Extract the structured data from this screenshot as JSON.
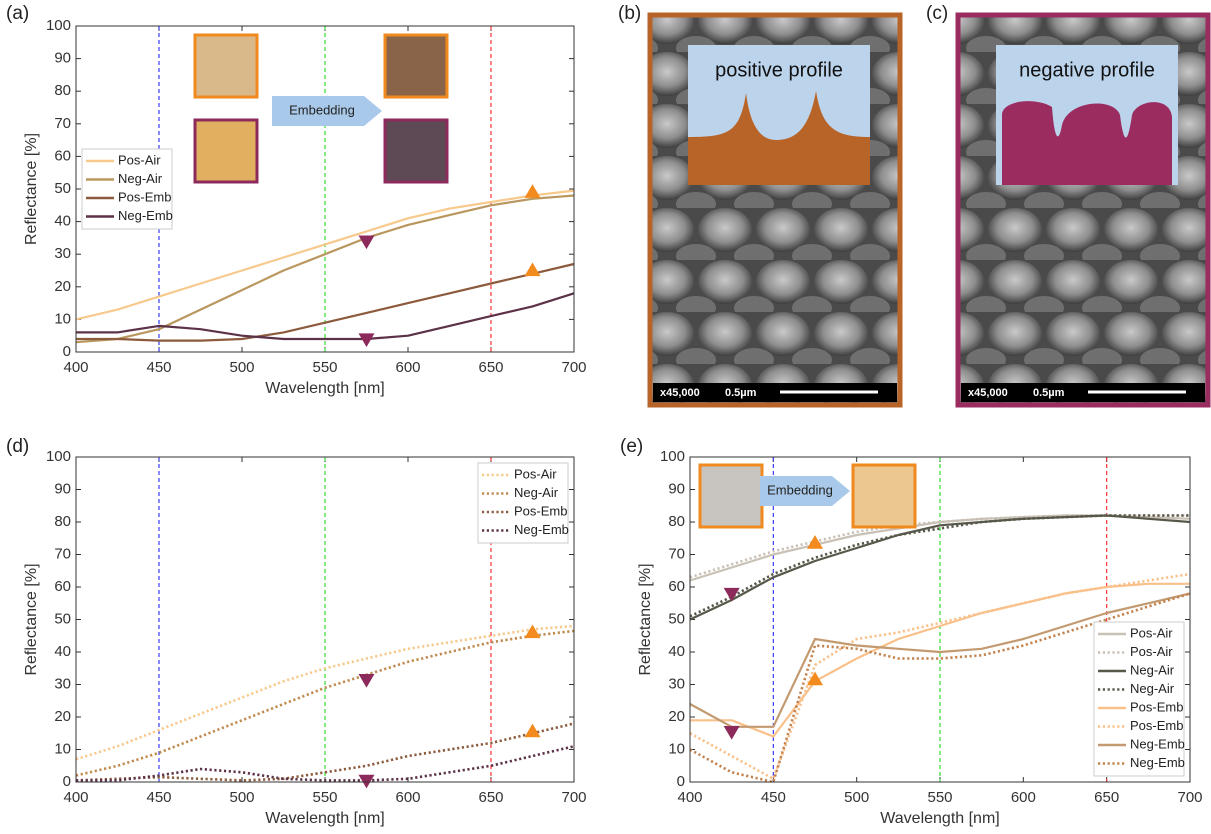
{
  "chart_data": [
    {
      "type": "line",
      "label": "(a)",
      "xlabel": "Wavelength [nm]",
      "ylabel": "Reflectance [%]",
      "x": [
        400,
        425,
        450,
        475,
        500,
        525,
        550,
        575,
        600,
        625,
        650,
        675,
        700
      ],
      "series": [
        {
          "name": "Pos-Air",
          "color": "#f7c98c",
          "linestyle": "solid",
          "values": [
            10,
            13,
            17,
            21,
            25,
            29,
            33,
            37,
            41,
            44,
            46,
            48,
            49.5
          ]
        },
        {
          "name": "Neg-Air",
          "color": "#b9975e",
          "linestyle": "solid",
          "values": [
            3,
            4,
            7,
            13,
            19,
            25,
            30,
            35,
            39,
            42,
            45,
            47,
            48
          ]
        },
        {
          "name": "Pos-Emb",
          "color": "#8c5a3c",
          "linestyle": "solid",
          "values": [
            4,
            4,
            3.5,
            3.5,
            4,
            6,
            9,
            12,
            15,
            18,
            21,
            24,
            27
          ]
        },
        {
          "name": "Neg-Emb",
          "color": "#5c3248",
          "linestyle": "solid",
          "values": [
            6,
            6,
            8,
            7,
            5,
            4,
            4,
            4,
            5,
            8,
            11,
            14,
            18
          ]
        }
      ],
      "xlim": [
        400,
        700
      ],
      "ylim": [
        0,
        100
      ],
      "xticks": [
        400,
        450,
        500,
        550,
        600,
        650,
        700
      ],
      "yticks": [
        0,
        10,
        20,
        30,
        40,
        50,
        60,
        70,
        80,
        90,
        100
      ],
      "legend": "center left",
      "vlines": [
        {
          "x": 450,
          "color": "#3a3aff"
        },
        {
          "x": 550,
          "color": "#33dd33"
        },
        {
          "x": 650,
          "color": "#ff3333"
        }
      ],
      "markers": [
        {
          "x": 675,
          "y": 49,
          "shape": "up",
          "color": "#f28a1e"
        },
        {
          "x": 675,
          "y": 25,
          "shape": "up",
          "color": "#f28a1e"
        },
        {
          "x": 575,
          "y": 34,
          "shape": "down",
          "color": "#8c2a5c"
        },
        {
          "x": 575,
          "y": 4,
          "shape": "down",
          "color": "#8c2a5c"
        }
      ],
      "annotation": "Embedding"
    },
    {
      "type": "image",
      "label": "(b)",
      "inset_text": "positive profile",
      "magnification": "x45,000",
      "scale": "0.5µm",
      "color": "#b86428"
    },
    {
      "type": "image",
      "label": "(c)",
      "inset_text": "negative profile",
      "magnification": "x45,000",
      "scale": "0.5µm",
      "color": "#9a2c60"
    },
    {
      "type": "line",
      "label": "(d)",
      "xlabel": "Wavelength [nm]",
      "ylabel": "Reflectance [%]",
      "x": [
        400,
        425,
        450,
        475,
        500,
        525,
        550,
        575,
        600,
        625,
        650,
        675,
        700
      ],
      "series": [
        {
          "name": "Pos-Air",
          "color": "#f7c98c",
          "linestyle": "dotted",
          "values": [
            7,
            11,
            16,
            21,
            26,
            31,
            35,
            38,
            41,
            43,
            45,
            47,
            48
          ]
        },
        {
          "name": "Neg-Air",
          "color": "#c08a4e",
          "linestyle": "dotted",
          "values": [
            2,
            5,
            9,
            14,
            19,
            24,
            29,
            33,
            37,
            40,
            43,
            45,
            46.5
          ]
        },
        {
          "name": "Pos-Emb",
          "color": "#8c5a3c",
          "linestyle": "dotted",
          "values": [
            0.5,
            1,
            1.5,
            1,
            0.5,
            1,
            3,
            5,
            8,
            10,
            12,
            15,
            18
          ]
        },
        {
          "name": "Neg-Emb",
          "color": "#5c3248",
          "linestyle": "dotted",
          "values": [
            0.5,
            0.5,
            2,
            4,
            3,
            1,
            0.5,
            0.5,
            1,
            3,
            5,
            8,
            11
          ]
        }
      ],
      "xlim": [
        400,
        700
      ],
      "ylim": [
        0,
        100
      ],
      "xticks": [
        400,
        450,
        500,
        550,
        600,
        650,
        700
      ],
      "yticks": [
        0,
        10,
        20,
        30,
        40,
        50,
        60,
        70,
        80,
        90,
        100
      ],
      "legend": "upper right",
      "vlines": [
        {
          "x": 450,
          "color": "#3a3aff"
        },
        {
          "x": 550,
          "color": "#33dd33"
        },
        {
          "x": 650,
          "color": "#ff3333"
        }
      ],
      "markers": [
        {
          "x": 675,
          "y": 46,
          "shape": "up",
          "color": "#f28a1e"
        },
        {
          "x": 675,
          "y": 15.5,
          "shape": "up",
          "color": "#f28a1e"
        },
        {
          "x": 575,
          "y": 31.5,
          "shape": "down",
          "color": "#8c2a5c"
        },
        {
          "x": 575,
          "y": 0.5,
          "shape": "down",
          "color": "#8c2a5c"
        }
      ]
    },
    {
      "type": "line",
      "label": "(e)",
      "xlabel": "Wavelength [nm]",
      "ylabel": "Reflectance [%]",
      "x": [
        400,
        425,
        450,
        475,
        500,
        525,
        550,
        575,
        600,
        625,
        650,
        675,
        700
      ],
      "series": [
        {
          "name": "Pos-Air",
          "color": "#c9c1b6",
          "linestyle": "solid",
          "values": [
            62,
            66,
            70,
            73,
            76,
            78,
            80,
            81,
            81.5,
            82,
            82,
            81.5,
            81
          ]
        },
        {
          "name": "Pos-Air",
          "color": "#c9c1b6",
          "linestyle": "dotted",
          "values": [
            63,
            67,
            71,
            74,
            77,
            79,
            80,
            81,
            81.5,
            82,
            82,
            82,
            82
          ]
        },
        {
          "name": "Neg-Air",
          "color": "#57574a",
          "linestyle": "solid",
          "values": [
            50,
            56,
            63,
            68,
            72,
            76,
            79,
            80,
            81,
            81.5,
            82,
            81,
            80
          ]
        },
        {
          "name": "Neg-Air",
          "color": "#57574a",
          "linestyle": "dotted",
          "values": [
            51,
            57,
            64,
            69,
            73,
            76,
            78,
            80,
            81,
            81.5,
            82,
            82,
            82
          ]
        },
        {
          "name": "Pos-Emb",
          "color": "#f9c08a",
          "linestyle": "solid",
          "values": [
            19,
            19,
            14,
            31,
            38,
            44,
            48,
            52,
            55,
            58,
            60,
            61,
            61
          ]
        },
        {
          "name": "Pos-Emb",
          "color": "#f9c08a",
          "linestyle": "dotted",
          "values": [
            15,
            8,
            1,
            36,
            44,
            46,
            49,
            52,
            55,
            58,
            60,
            62,
            64
          ]
        },
        {
          "name": "Neg-Emb",
          "color": "#c39a70",
          "linestyle": "solid",
          "values": [
            24,
            17,
            17,
            44,
            42,
            41,
            40,
            41,
            44,
            48,
            52,
            55,
            58
          ]
        },
        {
          "name": "Neg-Emb",
          "color": "#c3834f",
          "linestyle": "dotted",
          "values": [
            10,
            3,
            0,
            42,
            41,
            38,
            38,
            39,
            42,
            46,
            50,
            54,
            58
          ]
        }
      ],
      "xlim": [
        400,
        700
      ],
      "ylim": [
        0,
        100
      ],
      "xticks": [
        400,
        450,
        500,
        550,
        600,
        650,
        700
      ],
      "yticks": [
        0,
        10,
        20,
        30,
        40,
        50,
        60,
        70,
        80,
        90,
        100
      ],
      "legend": "lower right",
      "vlines": [
        {
          "x": 450,
          "color": "#3a3aff"
        },
        {
          "x": 550,
          "color": "#33dd33"
        },
        {
          "x": 650,
          "color": "#ff3333"
        }
      ],
      "markers": [
        {
          "x": 475,
          "y": 73.5,
          "shape": "up",
          "color": "#f28a1e"
        },
        {
          "x": 475,
          "y": 31.5,
          "shape": "up",
          "color": "#f28a1e"
        },
        {
          "x": 425,
          "y": 58,
          "shape": "down",
          "color": "#8c2a5c"
        },
        {
          "x": 425,
          "y": 15.5,
          "shape": "down",
          "color": "#8c2a5c"
        }
      ],
      "annotation": "Embedding"
    }
  ]
}
